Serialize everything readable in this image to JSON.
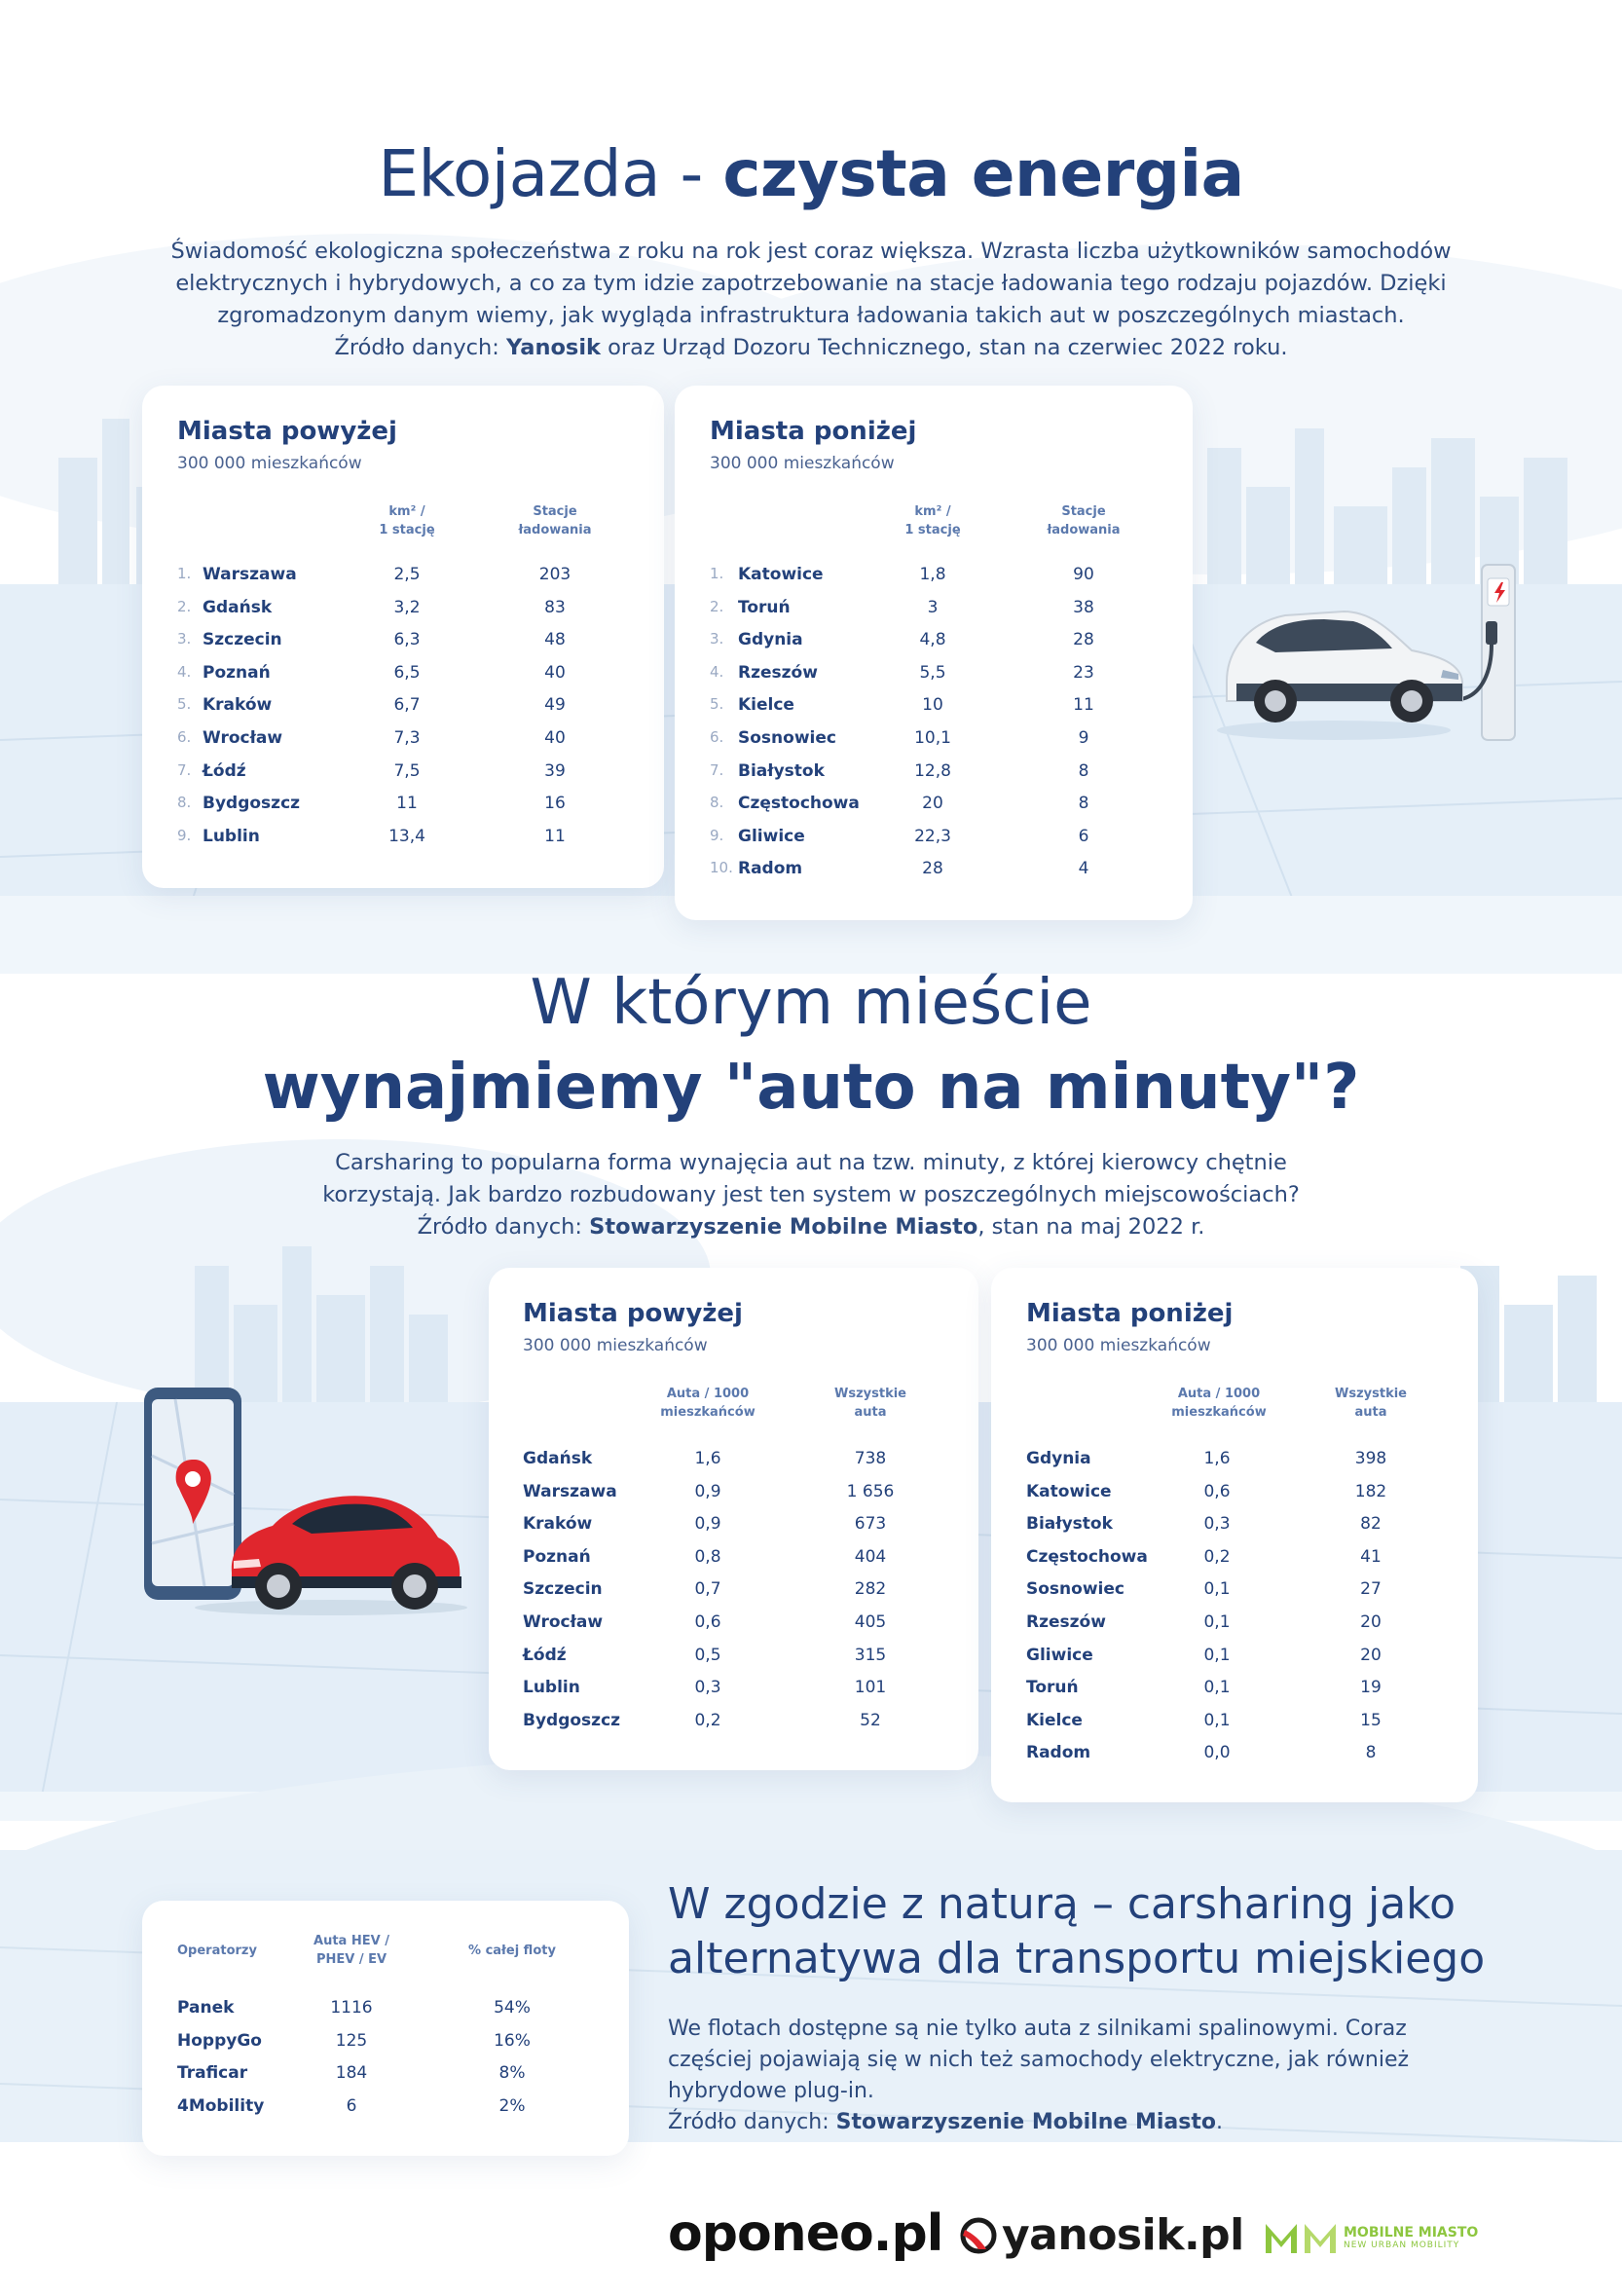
{
  "section1": {
    "title_regular": "Ekojazda - ",
    "title_bold": "czysta energia",
    "intro_lines": [
      "Świadomość ekologiczna społeczeństwa z roku na rok jest coraz większa. Wzrasta liczba użytkowników samochodów",
      "elektrycznych i hybrydowych, a co za tym idzie zapotrzebowanie na stacje ładowania tego rodzaju pojazdów. Dzięki",
      "zgromadzonym danym wiemy, jak wygląda infrastruktura ładowania takich aut w poszczególnych miastach."
    ],
    "source_prefix": "Źródło danych: ",
    "source_bold": "Yanosik",
    "source_suffix": " oraz Urząd Dozoru Technicznego, stan na czerwiec 2022 roku.",
    "table_above": {
      "title": "Miasta powyżej",
      "subtitle": "300 000 mieszkańców",
      "col1_head_1": "km² /",
      "col1_head_2": "1 stację",
      "col2_head_1": "Stacje",
      "col2_head_2": "ładowania",
      "rows": [
        {
          "idx": "1.",
          "city": "Warszawa",
          "v1": "2,5",
          "v2": "203"
        },
        {
          "idx": "2.",
          "city": "Gdańsk",
          "v1": "3,2",
          "v2": "83"
        },
        {
          "idx": "3.",
          "city": "Szczecin",
          "v1": "6,3",
          "v2": "48"
        },
        {
          "idx": "4.",
          "city": "Poznań",
          "v1": "6,5",
          "v2": "40"
        },
        {
          "idx": "5.",
          "city": "Kraków",
          "v1": "6,7",
          "v2": "49"
        },
        {
          "idx": "6.",
          "city": "Wrocław",
          "v1": "7,3",
          "v2": "40"
        },
        {
          "idx": "7.",
          "city": "Łódź",
          "v1": "7,5",
          "v2": "39"
        },
        {
          "idx": "8.",
          "city": "Bydgoszcz",
          "v1": "11",
          "v2": "16"
        },
        {
          "idx": "9.",
          "city": "Lublin",
          "v1": "13,4",
          "v2": "11"
        }
      ]
    },
    "table_below": {
      "title": "Miasta poniżej",
      "subtitle": "300 000 mieszkańców",
      "col1_head_1": "km² /",
      "col1_head_2": "1 stację",
      "col2_head_1": "Stacje",
      "col2_head_2": "ładowania",
      "rows": [
        {
          "idx": "1.",
          "city": "Katowice",
          "v1": "1,8",
          "v2": "90"
        },
        {
          "idx": "2.",
          "city": "Toruń",
          "v1": "3",
          "v2": "38"
        },
        {
          "idx": "3.",
          "city": "Gdynia",
          "v1": "4,8",
          "v2": "28"
        },
        {
          "idx": "4.",
          "city": "Rzeszów",
          "v1": "5,5",
          "v2": "23"
        },
        {
          "idx": "5.",
          "city": "Kielce",
          "v1": "10",
          "v2": "11"
        },
        {
          "idx": "6.",
          "city": "Sosnowiec",
          "v1": "10,1",
          "v2": "9"
        },
        {
          "idx": "7.",
          "city": "Białystok",
          "v1": "12,8",
          "v2": "8"
        },
        {
          "idx": "8.",
          "city": "Częstochowa",
          "v1": "20",
          "v2": "8"
        },
        {
          "idx": "9.",
          "city": "Gliwice",
          "v1": "22,3",
          "v2": "6"
        },
        {
          "idx": "10.",
          "city": "Radom",
          "v1": "28",
          "v2": "4"
        }
      ]
    }
  },
  "section2": {
    "title_line1": "W którym mieście",
    "title_line2": "wynajmiemy \"auto na minuty\"?",
    "intro_lines": [
      "Carsharing to popularna forma wynajęcia aut na tzw. minuty, z której kierowcy chętnie",
      "korzystają. Jak bardzo rozbudowany jest ten system w poszczególnych miejscowościach?"
    ],
    "source_prefix": "Źródło danych: ",
    "source_bold": "Stowarzyszenie Mobilne Miasto",
    "source_suffix": ", stan na maj 2022 r.",
    "table_above": {
      "title": "Miasta powyżej",
      "subtitle": "300 000 mieszkańców",
      "col1_head_1": "Auta / 1000",
      "col1_head_2": "mieszkańców",
      "col2_head_1": "Wszystkie",
      "col2_head_2": "auta",
      "rows": [
        {
          "city": "Gdańsk",
          "v1": "1,6",
          "v2": "738"
        },
        {
          "city": "Warszawa",
          "v1": "0,9",
          "v2": "1 656"
        },
        {
          "city": "Kraków",
          "v1": "0,9",
          "v2": "673"
        },
        {
          "city": "Poznań",
          "v1": "0,8",
          "v2": "404"
        },
        {
          "city": "Szczecin",
          "v1": "0,7",
          "v2": "282"
        },
        {
          "city": "Wrocław",
          "v1": "0,6",
          "v2": "405"
        },
        {
          "city": "Łódź",
          "v1": "0,5",
          "v2": "315"
        },
        {
          "city": "Lublin",
          "v1": "0,3",
          "v2": "101"
        },
        {
          "city": "Bydgoszcz",
          "v1": "0,2",
          "v2": "52"
        }
      ]
    },
    "table_below": {
      "title": "Miasta poniżej",
      "subtitle": "300 000 mieszkańców",
      "col1_head_1": "Auta / 1000",
      "col1_head_2": "mieszkańców",
      "col2_head_1": "Wszystkie",
      "col2_head_2": "auta",
      "rows": [
        {
          "city": "Gdynia",
          "v1": "1,6",
          "v2": "398"
        },
        {
          "city": "Katowice",
          "v1": "0,6",
          "v2": "182"
        },
        {
          "city": "Białystok",
          "v1": "0,3",
          "v2": "82"
        },
        {
          "city": "Częstochowa",
          "v1": "0,2",
          "v2": "41"
        },
        {
          "city": "Sosnowiec",
          "v1": "0,1",
          "v2": "27"
        },
        {
          "city": "Rzeszów",
          "v1": "0,1",
          "v2": "20"
        },
        {
          "city": "Gliwice",
          "v1": "0,1",
          "v2": "20"
        },
        {
          "city": "Toruń",
          "v1": "0,1",
          "v2": "19"
        },
        {
          "city": "Kielce",
          "v1": "0,1",
          "v2": "15"
        },
        {
          "city": "Radom",
          "v1": "0,0",
          "v2": "8"
        }
      ]
    }
  },
  "section3": {
    "operators_table": {
      "col0_head": "Operatorzy",
      "col1_head_1": "Auta HEV /",
      "col1_head_2": "PHEV / EV",
      "col2_head": "% całej floty",
      "rows": [
        {
          "name": "Panek",
          "v1": "1116",
          "v2": "54%"
        },
        {
          "name": "HoppyGo",
          "v1": "125",
          "v2": "16%"
        },
        {
          "name": "Traficar",
          "v1": "184",
          "v2": "8%"
        },
        {
          "name": "4Mobility",
          "v1": "6",
          "v2": "2%"
        }
      ]
    },
    "title_line1": "W zgodzie z naturą – carsharing jako",
    "title_line2": "alternatywa dla transportu miejskiego",
    "para_lines": [
      "We flotach dostępne są nie tylko auta z silnikami spalinowymi. Coraz",
      "częściej pojawiają się w nich też samochody elektryczne, jak również",
      "hybrydowe plug-in."
    ],
    "source_prefix": "Źródło danych: ",
    "source_bold": "Stowarzyszenie Mobilne Miasto",
    "source_suffix": "."
  },
  "logos": {
    "oponeo": "oponeo.pl",
    "yanosik": "yanosik.pl",
    "mobilne_line1": "MOBILNE MIASTO",
    "mobilne_line2": "NEW URBAN MOBILITY",
    "mobilne_icon": "mm-logo-icon"
  },
  "colors": {
    "primary_navy": "#23417a",
    "background_light_blue": "#e6f0f8",
    "car_red": "#e0262d",
    "mm_green": "#8dc63f"
  }
}
